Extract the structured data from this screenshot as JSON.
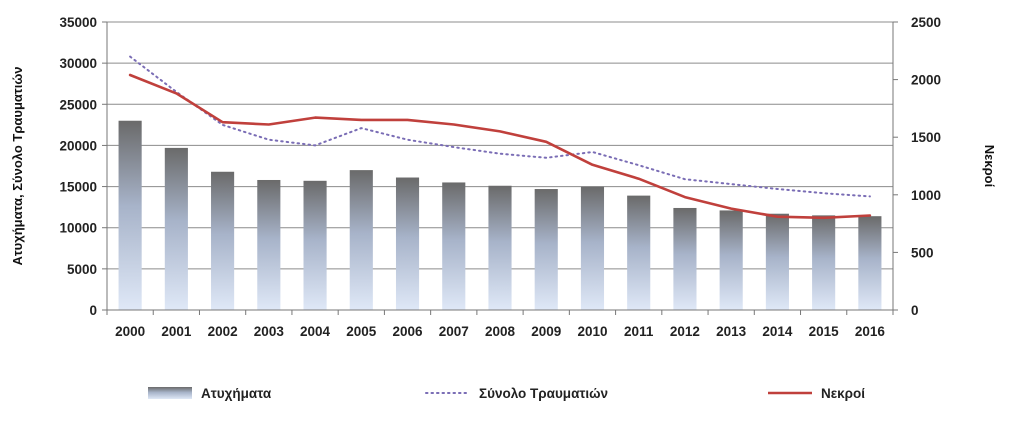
{
  "chart_data": {
    "type": "bar",
    "categories": [
      "2000",
      "2001",
      "2002",
      "2003",
      "2004",
      "2005",
      "2006",
      "2007",
      "2008",
      "2009",
      "2010",
      "2011",
      "2012",
      "2013",
      "2014",
      "2015",
      "2016"
    ],
    "series": [
      {
        "name": "Ατυχήματα",
        "type": "bar",
        "axis": "left",
        "color": "#707070",
        "values": [
          23000,
          19700,
          16800,
          15800,
          15700,
          17000,
          16100,
          15500,
          15100,
          14700,
          15000,
          13900,
          12400,
          12100,
          11700,
          11500,
          11400
        ]
      },
      {
        "name": "Σύνολο Τραυματιών",
        "type": "line",
        "style": "dotted",
        "axis": "left",
        "color": "#7a6db5",
        "values": [
          30800,
          26500,
          22500,
          20700,
          20000,
          22100,
          20700,
          19800,
          19000,
          18500,
          19200,
          17600,
          15900,
          15300,
          14700,
          14200,
          13800
        ]
      },
      {
        "name": "Νεκροί",
        "type": "line",
        "style": "solid",
        "axis": "right",
        "color": "#c0403c",
        "values": [
          2040,
          1880,
          1630,
          1610,
          1670,
          1650,
          1650,
          1610,
          1550,
          1460,
          1260,
          1140,
          980,
          880,
          810,
          800,
          820
        ]
      }
    ],
    "ylabel": "Ατυχήματα, Σύνολο Τραυματιών",
    "y2label": "Νεκροί",
    "ylim": [
      0,
      35000
    ],
    "y2lim": [
      0,
      2500
    ],
    "yticks": [
      "0",
      "5000",
      "10000",
      "15000",
      "20000",
      "25000",
      "30000",
      "35000"
    ],
    "y2ticks": [
      "0",
      "500",
      "1000",
      "1500",
      "2000",
      "2500"
    ],
    "grid": true,
    "legend": "bottom"
  }
}
